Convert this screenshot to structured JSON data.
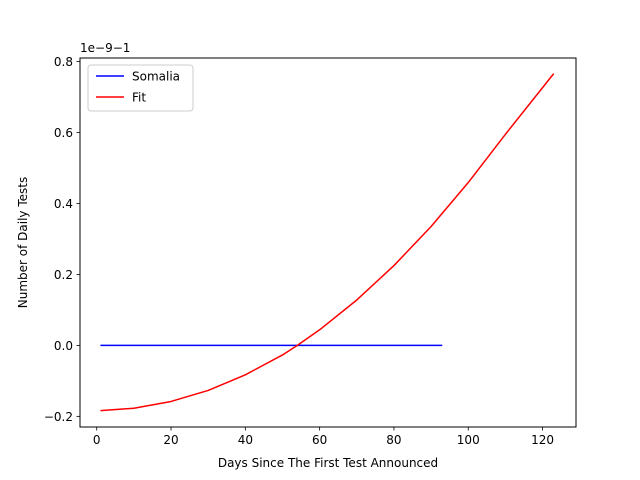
{
  "chart_data": {
    "type": "line",
    "title": "",
    "xlabel": "Days Since The First Test Announced",
    "ylabel": "Number of Daily Tests",
    "offset_text": "1e−9−1",
    "xlim": [
      -4.5,
      129
    ],
    "ylim": [
      -0.23,
      0.81
    ],
    "x_ticks": [
      0,
      20,
      40,
      60,
      80,
      100,
      120
    ],
    "x_tick_labels": [
      "0",
      "20",
      "40",
      "60",
      "80",
      "100",
      "120"
    ],
    "y_ticks": [
      -0.2,
      0.0,
      0.2,
      0.4,
      0.6,
      0.8
    ],
    "y_tick_labels": [
      "−0.2",
      "0.0",
      "0.2",
      "0.4",
      "0.6",
      "0.8"
    ],
    "grid": false,
    "legend_position": "upper-left",
    "series": [
      {
        "name": "Somalia",
        "color": "#0000ff",
        "x": [
          1,
          93
        ],
        "y": [
          0.0,
          0.0
        ]
      },
      {
        "name": "Fit",
        "color": "#ff0000",
        "x": [
          1,
          10,
          20,
          30,
          40,
          50,
          54,
          60,
          70,
          80,
          90,
          100,
          110,
          123
        ],
        "y": [
          -0.184,
          -0.177,
          -0.158,
          -0.127,
          -0.083,
          -0.027,
          0.0,
          0.044,
          0.128,
          0.225,
          0.335,
          0.459,
          0.595,
          0.766
        ]
      }
    ]
  }
}
